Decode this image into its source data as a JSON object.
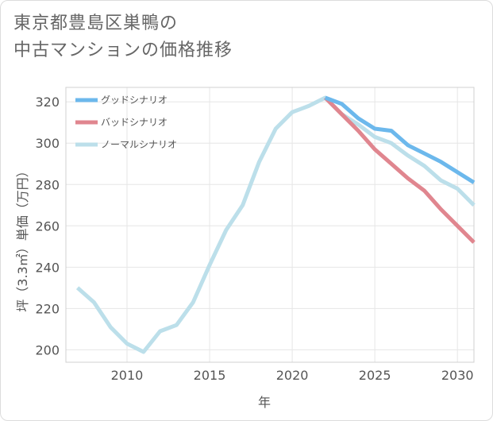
{
  "title_lines": [
    "東京都豊島区巣鴨の",
    "中古マンションの価格推移"
  ],
  "chart_data": {
    "type": "line",
    "xlabel": "年",
    "ylabel": "坪（3.3㎡）単価（万円）",
    "xlim": [
      2006.3,
      2031
    ],
    "ylim": [
      194,
      327
    ],
    "x_ticks": [
      2010,
      2015,
      2020,
      2025,
      2030
    ],
    "y_ticks": [
      200,
      220,
      240,
      260,
      280,
      300,
      320
    ],
    "grid": true,
    "legend_position": "top-left",
    "series": [
      {
        "name": "グッドシナリオ",
        "color": "#6cb8ec",
        "x": [
          2022,
          2023,
          2024,
          2025,
          2026,
          2027,
          2028,
          2029,
          2030,
          2031
        ],
        "y": [
          322,
          319,
          312,
          307,
          306,
          299,
          295,
          291,
          286,
          281
        ]
      },
      {
        "name": "バッドシナリオ",
        "color": "#e0868f",
        "x": [
          2022,
          2023,
          2024,
          2025,
          2026,
          2027,
          2028,
          2029,
          2030,
          2031
        ],
        "y": [
          322,
          314,
          306,
          297,
          290,
          283,
          277,
          268,
          260,
          252
        ]
      },
      {
        "name": "ノーマルシナリオ",
        "color": "#bcdfea",
        "x": [
          2007,
          2008,
          2009,
          2010,
          2011,
          2012,
          2013,
          2014,
          2015,
          2016,
          2017,
          2018,
          2019,
          2020,
          2021,
          2022,
          2023,
          2024,
          2025,
          2026,
          2027,
          2028,
          2029,
          2030,
          2031
        ],
        "y": [
          230,
          223,
          211,
          203,
          199,
          209,
          212,
          223,
          241,
          258,
          270,
          291,
          307,
          315,
          318,
          322,
          314,
          309,
          303,
          300,
          294,
          289,
          282,
          278,
          270
        ]
      }
    ]
  }
}
